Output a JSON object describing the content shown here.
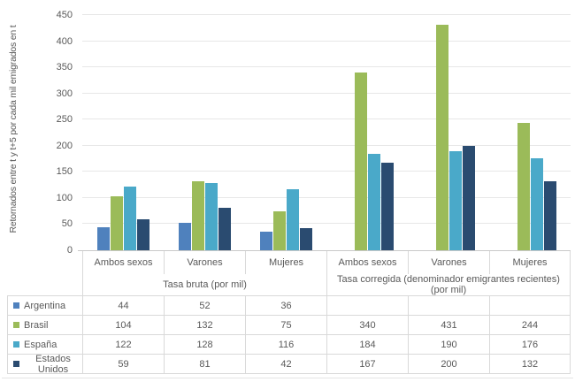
{
  "chart_data": {
    "type": "bar",
    "title": "",
    "ylabel": "Retornados entre t y t+5  por cada mil emigrados en t",
    "xlabel": "",
    "ylim": [
      0,
      450
    ],
    "yticks": [
      0,
      50,
      100,
      150,
      200,
      250,
      300,
      350,
      400,
      450
    ],
    "grid": true,
    "legend_position": "data-table-left",
    "categories": [
      "Ambos sexos",
      "Varones",
      "Mujeres",
      "Ambos sexos",
      "Varones",
      "Mujeres"
    ],
    "group_headers": [
      {
        "label": "Tasa bruta (por mil)",
        "span": 3
      },
      {
        "label": "Tasa corregida (denominador emigrantes recientes) (por mil)",
        "span": 3
      }
    ],
    "series": [
      {
        "name": "Argentina",
        "color": "#4f81bd",
        "values": [
          44,
          52,
          36,
          null,
          null,
          null
        ]
      },
      {
        "name": "Brasil",
        "color": "#9bbb59",
        "values": [
          104,
          132,
          75,
          340,
          431,
          244
        ]
      },
      {
        "name": "España",
        "color": "#4aa9c9",
        "values": [
          122,
          128,
          116,
          184,
          190,
          176
        ]
      },
      {
        "name": "Estados Unidos",
        "color": "#2a4b70",
        "values": [
          59,
          81,
          42,
          167,
          200,
          132
        ]
      }
    ]
  },
  "colors": {
    "gridline": "#e7e7e7",
    "axis_line": "#c9c9c9",
    "table_border": "#d9d9d9",
    "text": "#595959"
  }
}
